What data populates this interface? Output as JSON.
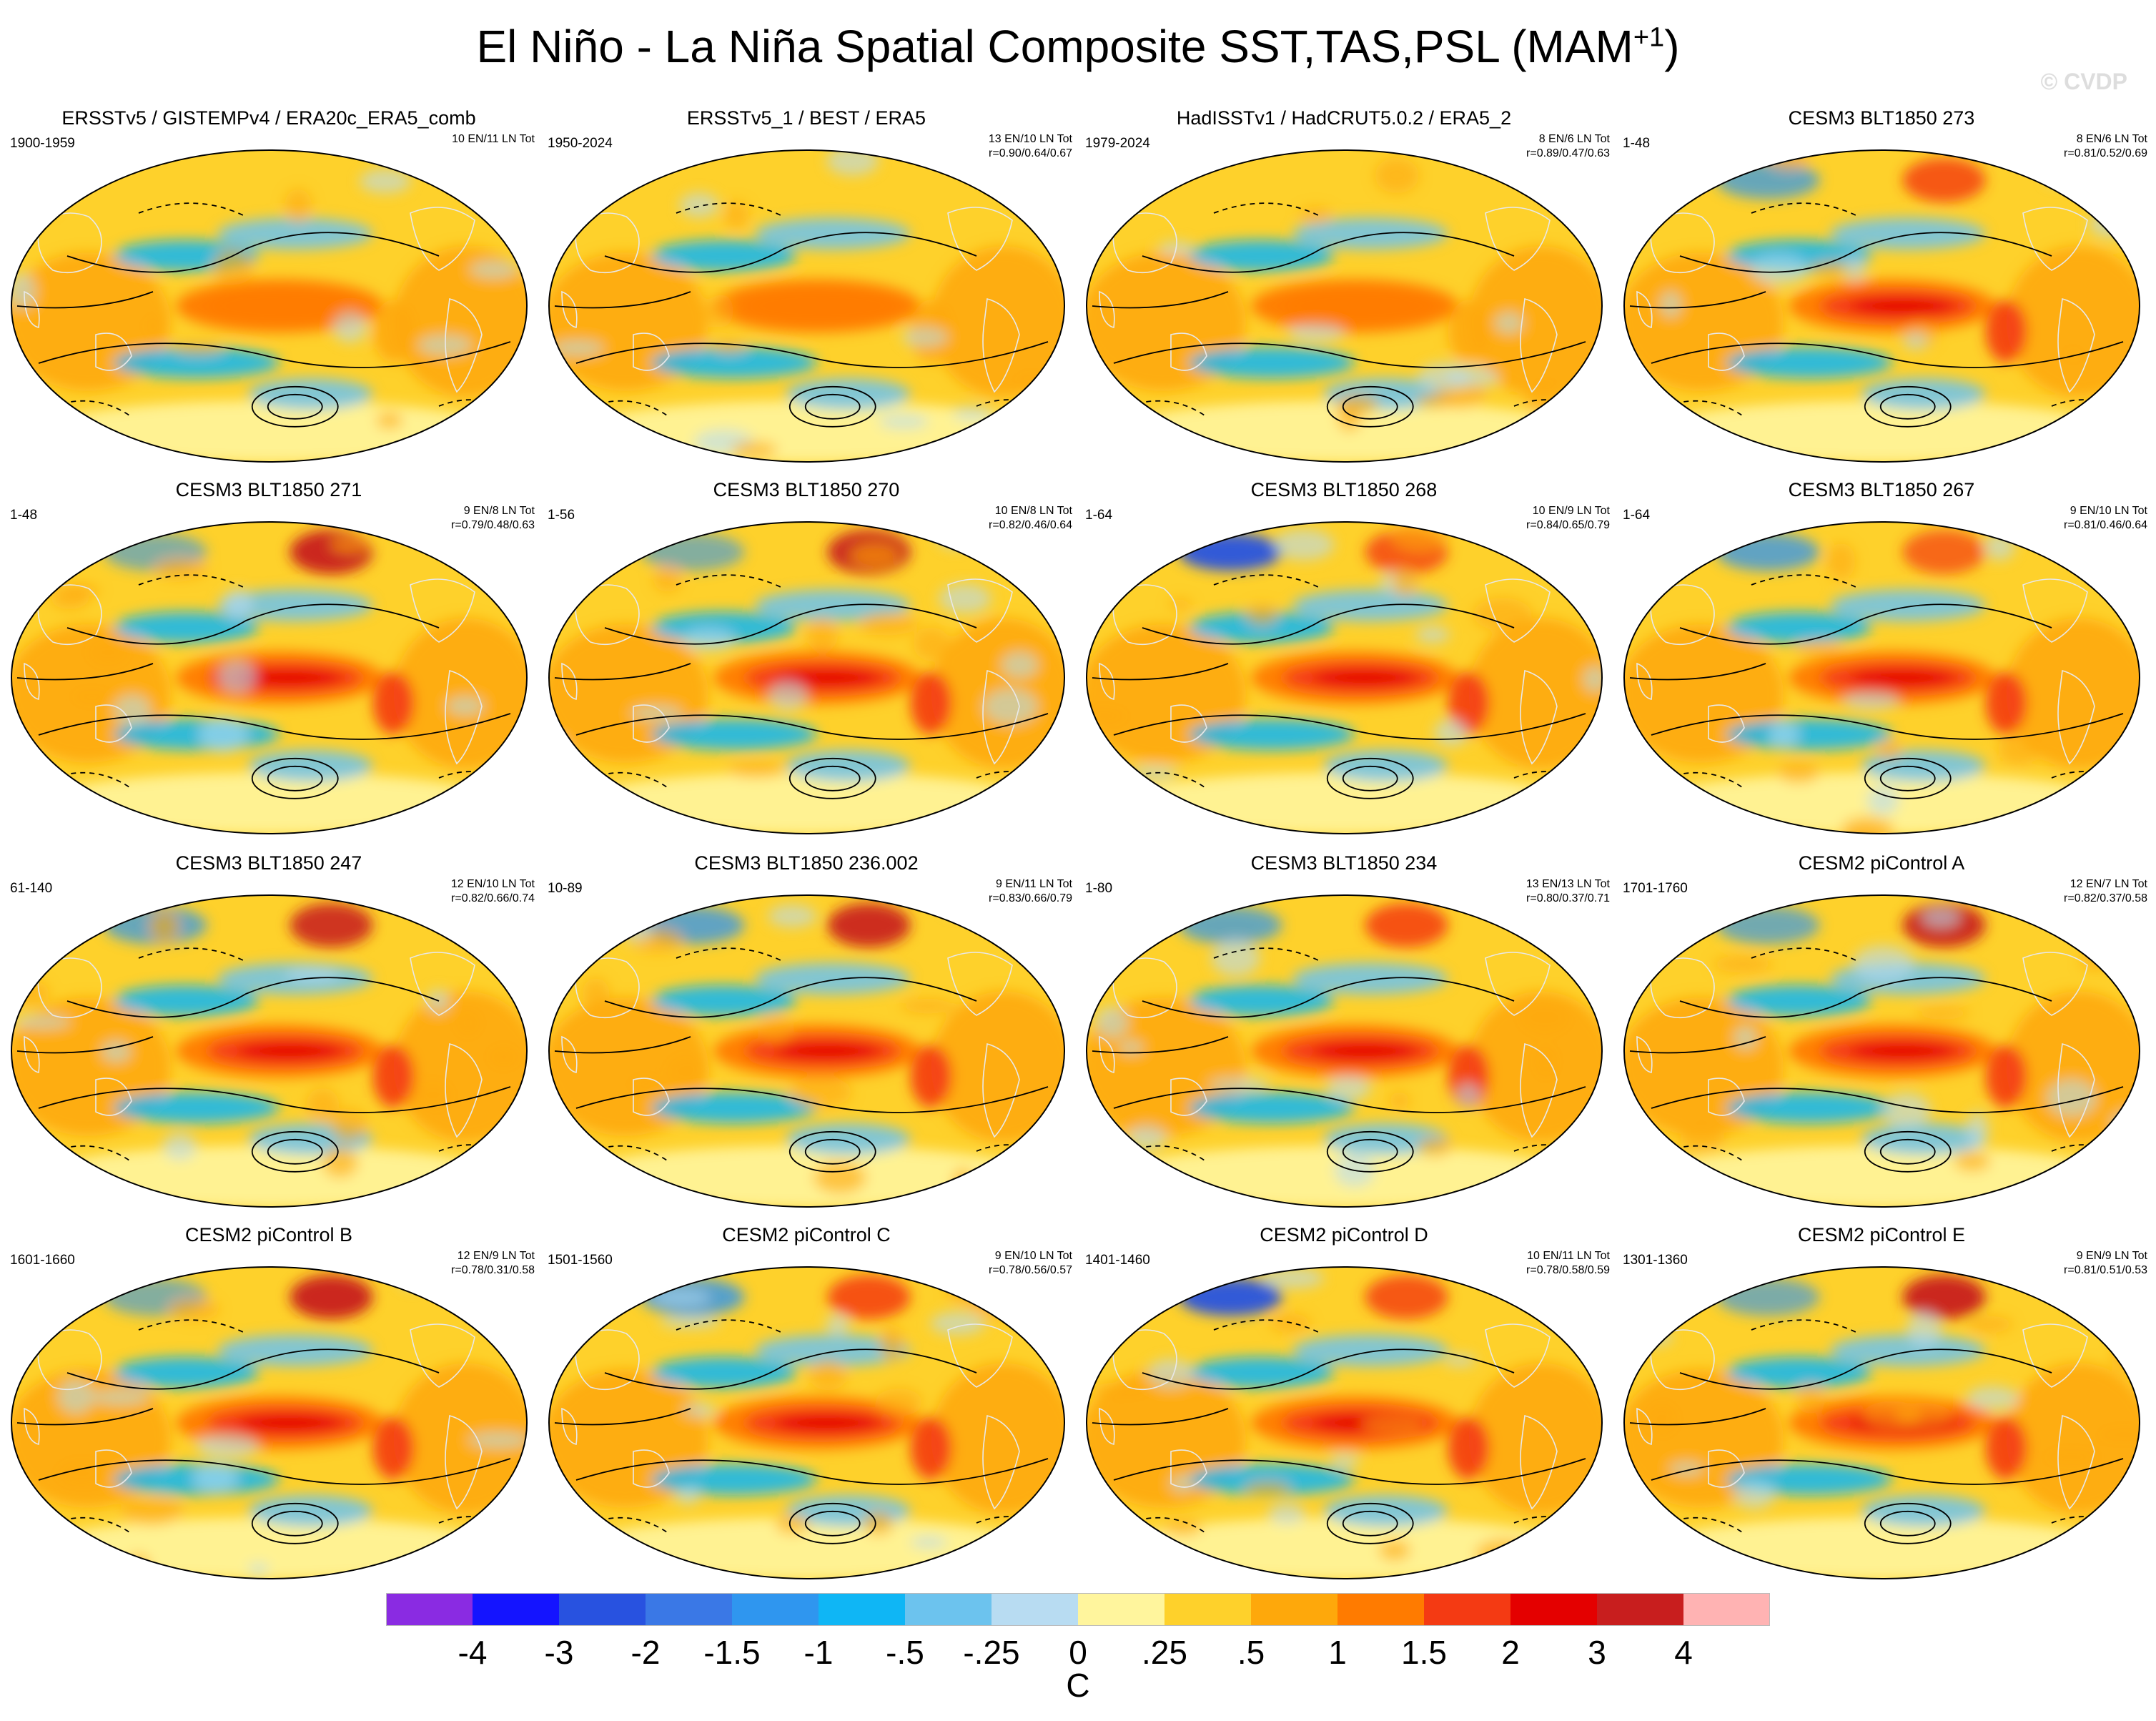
{
  "title": {
    "main": "El Niño - La Niña Spatial Composite SST,TAS,PSL (MAM",
    "sup": "+1",
    "close": ")"
  },
  "watermark": "© CVDP",
  "colors": {
    "ocean_neutral": "#fef49a",
    "land_outline": "#e8e8e8",
    "contour": "#000000"
  },
  "panels": [
    {
      "title": "ERSSTv5 / GISTEMPv4 / ERA20c_ERA5_comb",
      "years": "1900-1959",
      "counts": "10 EN/11 LN Tot",
      "corr": "",
      "intensity": 0.55,
      "arctic_cold": 0.0,
      "arctic_warm": 0.0
    },
    {
      "title": "ERSSTv5_1 / BEST / ERA5",
      "years": "1950-2024",
      "counts": "13 EN/10 LN Tot",
      "corr": "r=0.90/0.64/0.67",
      "intensity": 0.5,
      "arctic_cold": 0.0,
      "arctic_warm": 0.0
    },
    {
      "title": "HadISSTv1 / HadCRUT5.0.2 / ERA5_2",
      "years": "1979-2024",
      "counts": "8 EN/6 LN Tot",
      "corr": "r=0.89/0.47/0.63",
      "intensity": 0.5,
      "arctic_cold": 0.0,
      "arctic_warm": 0.0
    },
    {
      "title": "CESM3 BLT1850 273",
      "years": "1-48",
      "counts": "8 EN/6 LN Tot",
      "corr": "r=0.81/0.52/0.69",
      "intensity": 0.85,
      "arctic_cold": 0.5,
      "arctic_warm": 0.6
    },
    {
      "title": "CESM3 BLT1850 271",
      "years": "1-48",
      "counts": "9 EN/8 LN Tot",
      "corr": "r=0.79/0.48/0.63",
      "intensity": 0.9,
      "arctic_cold": 0.2,
      "arctic_warm": 1.0
    },
    {
      "title": "CESM3 BLT1850 270",
      "years": "1-56",
      "counts": "10 EN/8 LN Tot",
      "corr": "r=0.82/0.46/0.64",
      "intensity": 0.85,
      "arctic_cold": 0.2,
      "arctic_warm": 0.9
    },
    {
      "title": "CESM3 BLT1850 268",
      "years": "1-64",
      "counts": "10 EN/9 LN Tot",
      "corr": "r=0.84/0.65/0.79",
      "intensity": 0.85,
      "arctic_cold": 1.0,
      "arctic_warm": 0.5
    },
    {
      "title": "CESM3 BLT1850 267",
      "years": "1-64",
      "counts": "9 EN/10 LN Tot",
      "corr": "r=0.81/0.46/0.64",
      "intensity": 0.85,
      "arctic_cold": 0.6,
      "arctic_warm": 0.3
    },
    {
      "title": "CESM3 BLT1850 247",
      "years": "61-140",
      "counts": "12 EN/10 LN Tot",
      "corr": "r=0.82/0.66/0.74",
      "intensity": 1.0,
      "arctic_cold": 0.5,
      "arctic_warm": 0.8
    },
    {
      "title": "CESM3 BLT1850 236.002",
      "years": "10-89",
      "counts": "9 EN/11 LN Tot",
      "corr": "r=0.83/0.66/0.79",
      "intensity": 1.0,
      "arctic_cold": 0.6,
      "arctic_warm": 0.9
    },
    {
      "title": "CESM3 BLT1850 234",
      "years": "1-80",
      "counts": "13 EN/13 LN Tot",
      "corr": "r=0.80/0.37/0.71",
      "intensity": 1.0,
      "arctic_cold": 0.5,
      "arctic_warm": 0.7
    },
    {
      "title": "CESM2 piControl A",
      "years": "1701-1760",
      "counts": "12 EN/7 LN Tot",
      "corr": "r=0.82/0.37/0.58",
      "intensity": 0.95,
      "arctic_cold": 0.4,
      "arctic_warm": 0.9
    },
    {
      "title": "CESM2 piControl B",
      "years": "1601-1660",
      "counts": "12 EN/9 LN Tot",
      "corr": "r=0.78/0.31/0.58",
      "intensity": 0.9,
      "arctic_cold": 0.2,
      "arctic_warm": 1.0
    },
    {
      "title": "CESM2 piControl C",
      "years": "1501-1560",
      "counts": "9 EN/10 LN Tot",
      "corr": "r=0.78/0.56/0.57",
      "intensity": 1.0,
      "arctic_cold": 0.7,
      "arctic_warm": 0.7
    },
    {
      "title": "CESM2 piControl D",
      "years": "1401-1460",
      "counts": "10 EN/11 LN Tot",
      "corr": "r=0.78/0.58/0.59",
      "intensity": 0.9,
      "arctic_cold": 1.0,
      "arctic_warm": 0.6
    },
    {
      "title": "CESM2 piControl E",
      "years": "1301-1360",
      "counts": "9 EN/9 LN Tot",
      "corr": "r=0.81/0.51/0.53",
      "intensity": 0.85,
      "arctic_cold": 0.3,
      "arctic_warm": 1.0
    }
  ],
  "chart_data": {
    "type": "heatmap",
    "title": "El Niño - La Niña Spatial Composite SST,TAS,PSL (MAM+1)",
    "units": "C",
    "colorbar": {
      "colors": [
        "#8a2be2",
        "#1414ff",
        "#2852e0",
        "#3a78e6",
        "#2f96ef",
        "#0fb6f5",
        "#6cc3ee",
        "#b8dcf2",
        "#fff59d",
        "#fed12b",
        "#fea80b",
        "#ff7b00",
        "#f43a13",
        "#e40000",
        "#c81e1e",
        "#ffb3b3"
      ],
      "tick_labels": [
        "-4",
        "-3",
        "-2",
        "-1.5",
        "-1",
        "-.5",
        "-.25",
        "0",
        ".25",
        ".5",
        "1",
        "1.5",
        "2",
        "3",
        "4"
      ],
      "ticks": [
        -4,
        -3,
        -2,
        -1.5,
        -1,
        -0.5,
        -0.25,
        0,
        0.25,
        0.5,
        1,
        1.5,
        2,
        3,
        4
      ]
    }
  }
}
